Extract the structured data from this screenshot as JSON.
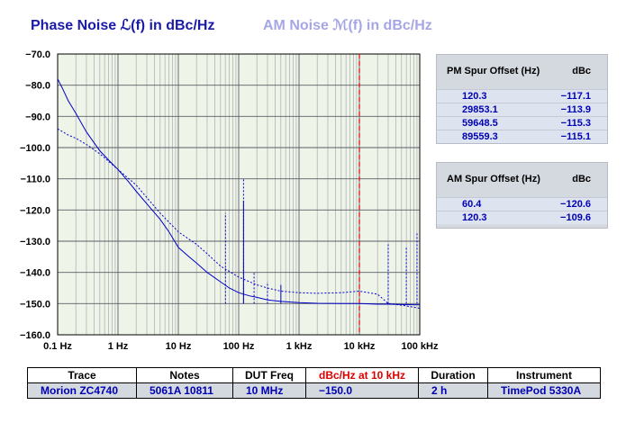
{
  "header": {
    "phase_noise_title": "Phase Noise ℒ(f) in dBc/Hz",
    "am_noise_title": "AM Noise ℳ(f) in dBc/Hz"
  },
  "colors": {
    "trace": "#0000c8",
    "am_title": "#a6a6e6",
    "marker": "#dd0000",
    "plot_bg": "#eef4e8",
    "panel": "#d4d8df"
  },
  "chart_data": {
    "type": "line",
    "x_scale": "log",
    "xlim": [
      0.1,
      100000
    ],
    "ylim": [
      -160,
      -70
    ],
    "grid": true,
    "x_ticks": [
      {
        "value": 0.1,
        "label": "0.1 Hz"
      },
      {
        "value": 1,
        "label": "1 Hz"
      },
      {
        "value": 10,
        "label": "10 Hz"
      },
      {
        "value": 100,
        "label": "100 Hz"
      },
      {
        "value": 1000,
        "label": "1 kHz"
      },
      {
        "value": 10000,
        "label": "10 kHz"
      },
      {
        "value": 100000,
        "label": "100 kHz"
      }
    ],
    "y_ticks": [
      {
        "value": -70,
        "label": "−70.0"
      },
      {
        "value": -80,
        "label": "−80.0"
      },
      {
        "value": -90,
        "label": "−90.0"
      },
      {
        "value": -100,
        "label": "−100.0"
      },
      {
        "value": -110,
        "label": "−110.0"
      },
      {
        "value": -120,
        "label": "−120.0"
      },
      {
        "value": -130,
        "label": "−130.0"
      },
      {
        "value": -140,
        "label": "−140.0"
      },
      {
        "value": -150,
        "label": "−150.0"
      },
      {
        "value": -160,
        "label": "−160.0"
      }
    ],
    "marker_x": 10000,
    "series": [
      {
        "style": "solid",
        "points": [
          [
            0.1,
            -78
          ],
          [
            0.12,
            -81
          ],
          [
            0.15,
            -85
          ],
          [
            0.2,
            -89
          ],
          [
            0.3,
            -95
          ],
          [
            0.5,
            -101
          ],
          [
            0.7,
            -104
          ],
          [
            1,
            -107
          ],
          [
            1.5,
            -111
          ],
          [
            2,
            -114
          ],
          [
            3,
            -118
          ],
          [
            5,
            -123
          ],
          [
            7,
            -127
          ],
          [
            10,
            -132
          ],
          [
            15,
            -135
          ],
          [
            20,
            -137
          ],
          [
            30,
            -140
          ],
          [
            50,
            -143
          ],
          [
            70,
            -145
          ],
          [
            100,
            -146.5
          ],
          [
            150,
            -147.5
          ],
          [
            200,
            -148
          ],
          [
            300,
            -148.8
          ],
          [
            500,
            -149.3
          ],
          [
            1000,
            -149.7
          ],
          [
            2000,
            -149.9
          ],
          [
            5000,
            -150
          ],
          [
            10000,
            -150
          ],
          [
            20000,
            -150.2
          ],
          [
            30000,
            -150.2
          ],
          [
            50000,
            -150.3
          ],
          [
            100000,
            -150.4
          ]
        ]
      },
      {
        "style": "dotted",
        "points": [
          [
            0.1,
            -94
          ],
          [
            0.15,
            -96
          ],
          [
            0.2,
            -97
          ],
          [
            0.3,
            -99
          ],
          [
            0.5,
            -102
          ],
          [
            1,
            -107
          ],
          [
            2,
            -112
          ],
          [
            3,
            -116
          ],
          [
            5,
            -121
          ],
          [
            10,
            -127
          ],
          [
            20,
            -131
          ],
          [
            30,
            -134
          ],
          [
            50,
            -138
          ],
          [
            100,
            -141.5
          ],
          [
            200,
            -144
          ],
          [
            300,
            -145
          ],
          [
            500,
            -146
          ],
          [
            1000,
            -146.5
          ],
          [
            2000,
            -146.7
          ],
          [
            5000,
            -146.5
          ],
          [
            10000,
            -146
          ],
          [
            20000,
            -147
          ],
          [
            30000,
            -150
          ],
          [
            50000,
            -150.5
          ],
          [
            100000,
            -151.5
          ]
        ]
      }
    ],
    "spurs": [
      {
        "x": 60.4,
        "y": -121,
        "style": "dotted"
      },
      {
        "x": 120.3,
        "y": -110,
        "style": "dotted"
      },
      {
        "x": 120.3,
        "y": -117,
        "style": "solid"
      },
      {
        "x": 180,
        "y": -140,
        "style": "dotted"
      },
      {
        "x": 300,
        "y": -143,
        "style": "dotted"
      },
      {
        "x": 500,
        "y": -144,
        "style": "solid"
      },
      {
        "x": 30000,
        "y": -131,
        "style": "dotted"
      },
      {
        "x": 60000,
        "y": -132,
        "style": "dotted"
      },
      {
        "x": 90000,
        "y": -127,
        "style": "dotted"
      }
    ]
  },
  "pm_spur": {
    "header_offset": "PM Spur Offset (Hz)",
    "header_dbc": "dBc",
    "rows": [
      {
        "offset": "120.3",
        "dbc": "−117.1"
      },
      {
        "offset": "29853.1",
        "dbc": "−113.9"
      },
      {
        "offset": "59648.5",
        "dbc": "−115.3"
      },
      {
        "offset": "89559.3",
        "dbc": "−115.1"
      }
    ]
  },
  "am_spur": {
    "header_offset": "AM Spur Offset (Hz)",
    "header_dbc": "dBc",
    "rows": [
      {
        "offset": "60.4",
        "dbc": "−120.6"
      },
      {
        "offset": "120.3",
        "dbc": "−109.6"
      }
    ]
  },
  "info_table": {
    "headers": [
      "Trace",
      "Notes",
      "DUT Freq",
      "dBc/Hz at 10 kHz",
      "Duration",
      "Instrument"
    ],
    "values": [
      "Morion ZC4740",
      "5061A 10811",
      "10 MHz",
      "−150.0",
      "2 h",
      "TimePod 5330A"
    ]
  }
}
